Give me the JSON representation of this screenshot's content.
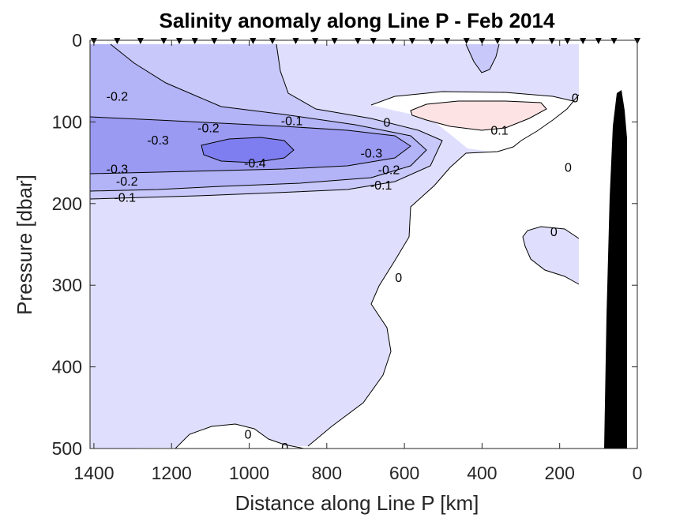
{
  "chart_data": {
    "type": "filled-contour",
    "title": "Salinity anomaly along Line P - Feb 2014",
    "xlabel": "Distance along Line P [km]",
    "ylabel": "Pressure [dbar]",
    "x_reversed": true,
    "xlim": [
      1410,
      0
    ],
    "ylim": [
      0,
      500
    ],
    "y_reversed": true,
    "xticks": [
      1400,
      1200,
      1000,
      800,
      600,
      400,
      200,
      0
    ],
    "yticks": [
      0,
      100,
      200,
      300,
      400,
      500
    ],
    "contour_levels": [
      -0.4,
      -0.3,
      -0.2,
      -0.1,
      0,
      0.1
    ],
    "colors": {
      "below_-0.4": "#7e7ef0",
      "-0.4_-0.3": "#9a9af3",
      "-0.3_-0.2": "#b3b3f7",
      "-0.2_-0.1": "#c8c8fa",
      "-0.1_0": "#dfdffd",
      "0_0.1": "#ffffff",
      "above_0.1": "#fde3e3",
      "bathymetry": "#000000",
      "station_marker": "#000000"
    },
    "station_markers_x_km": [
      1400,
      1340,
      1280,
      1220,
      1180,
      1140,
      1090,
      1040,
      990,
      940,
      880,
      830,
      780,
      720,
      680,
      630,
      580,
      530,
      490,
      440,
      400,
      360,
      310,
      270,
      220,
      180,
      140,
      100,
      60,
      0
    ],
    "contour_labels": [
      {
        "text": "-0.2",
        "x": 1340,
        "y": 68
      },
      {
        "text": "-0.1",
        "x": 890,
        "y": 98
      },
      {
        "text": "0",
        "x": 645,
        "y": 100
      },
      {
        "text": "0",
        "x": 160,
        "y": 70
      },
      {
        "text": "-0.2",
        "x": 1105,
        "y": 107
      },
      {
        "text": "0.1",
        "x": 355,
        "y": 110
      },
      {
        "text": "-0.3",
        "x": 1235,
        "y": 122
      },
      {
        "text": "-0.4",
        "x": 985,
        "y": 150
      },
      {
        "text": "-0.3",
        "x": 685,
        "y": 138
      },
      {
        "text": "-0.2",
        "x": 640,
        "y": 158
      },
      {
        "text": "0",
        "x": 178,
        "y": 155
      },
      {
        "text": "-0.3",
        "x": 1340,
        "y": 157
      },
      {
        "text": "-0.2",
        "x": 1315,
        "y": 172
      },
      {
        "text": "-0.1",
        "x": 1320,
        "y": 192
      },
      {
        "text": "-0.1",
        "x": 660,
        "y": 177
      },
      {
        "text": "0",
        "x": 215,
        "y": 234
      },
      {
        "text": "0",
        "x": 615,
        "y": 290
      },
      {
        "text": "0",
        "x": 1003,
        "y": 482
      },
      {
        "text": "0",
        "x": 908,
        "y": 498
      }
    ]
  }
}
